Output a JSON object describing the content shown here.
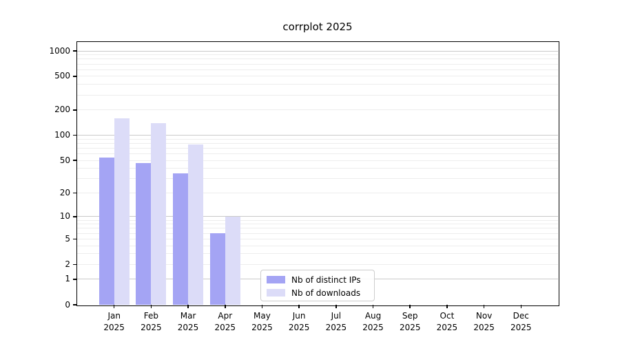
{
  "title": "corrplot 2025",
  "chart_data": {
    "type": "bar",
    "title": "corrplot 2025",
    "x_categories": [
      "Jan",
      "Feb",
      "Mar",
      "Apr",
      "May",
      "Jun",
      "Jul",
      "Aug",
      "Sep",
      "Oct",
      "Nov",
      "Dec"
    ],
    "x_year": "2025",
    "series": [
      {
        "name": "Nb of distinct IPs",
        "color": "#a4a4f4",
        "values": [
          54,
          46,
          35,
          6,
          0,
          0,
          0,
          0,
          0,
          0,
          0,
          0
        ]
      },
      {
        "name": "Nb of downloads",
        "color": "#dcdcf8",
        "values": [
          160,
          140,
          78,
          10,
          0,
          0,
          0,
          0,
          0,
          0,
          0,
          0
        ]
      }
    ],
    "y_scale": "log1p",
    "ylim": [
      0,
      1276
    ],
    "y_ticks": [
      0,
      1,
      2,
      5,
      10,
      20,
      50,
      100,
      200,
      500,
      1000
    ],
    "y_major_gridlines": [
      1,
      10,
      100,
      1000
    ],
    "y_minor_gridlines": [
      2,
      3,
      4,
      5,
      6,
      7,
      8,
      9,
      20,
      30,
      40,
      50,
      60,
      70,
      80,
      90,
      200,
      300,
      400,
      500,
      600,
      700,
      800,
      900
    ],
    "legend_position": "lower center",
    "grid": true
  },
  "colors": {
    "background": "#ffffff",
    "axis": "#000000",
    "major_grid": "#c9c9c9",
    "minor_grid": "#ededed",
    "legend_border": "#cccccc"
  }
}
